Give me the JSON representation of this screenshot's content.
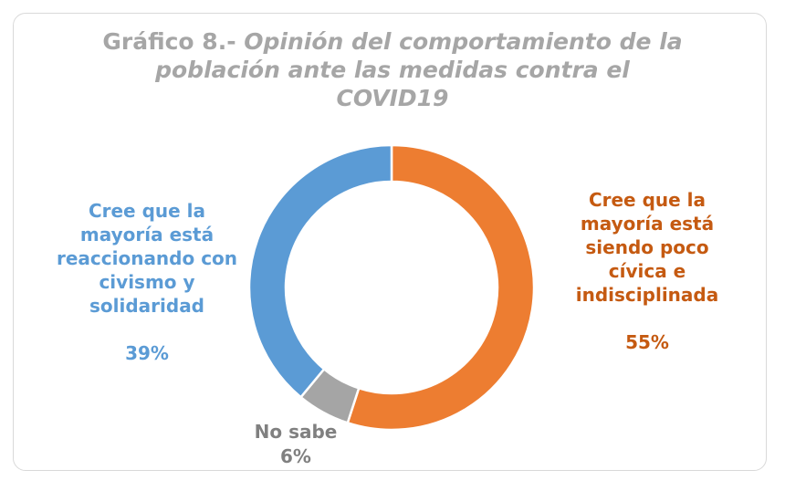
{
  "chart_data": {
    "type": "pie",
    "title_prefix": "Gráfico 8.- ",
    "title_line1": "Opinión del comportamiento de la",
    "title_line2": "población ante las medidas contra el",
    "title_line3": "COVID19",
    "categories": [
      "Cree que la mayoría está siendo poco cívica e indisciplinada",
      "No sabe",
      "Cree que la mayoría está reaccionando con civismo y solidaridad"
    ],
    "values": [
      55,
      6,
      39
    ],
    "percent_labels": [
      "55%",
      "6%",
      "39%"
    ],
    "colors": [
      "#ed7d31",
      "#a5a5a5",
      "#5b9bd5"
    ],
    "label_lines": {
      "right": [
        "Cree que la",
        "mayoría está",
        "siendo poco",
        "cívica e",
        "indisciplinada"
      ],
      "left": [
        "Cree que la",
        "mayoría está",
        "reaccionando con",
        "civismo y",
        "solidaridad"
      ],
      "bottom": [
        "No sabe"
      ]
    },
    "hole": "donut",
    "start": "top",
    "direction": "clockwise"
  }
}
